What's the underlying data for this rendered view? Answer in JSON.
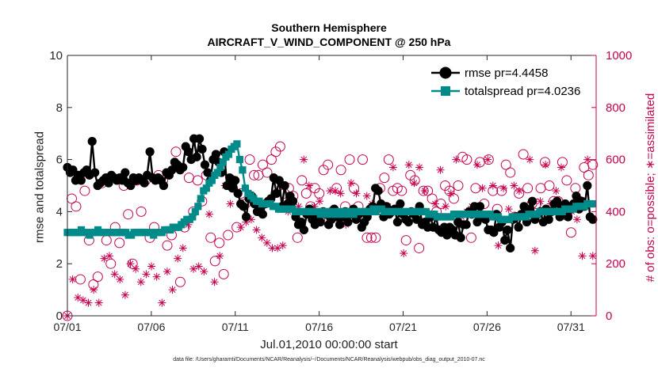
{
  "chart_data": {
    "type": "line",
    "title": "Southern Hemisphere",
    "subtitle": "AIRCRAFT_V_WIND_COMPONENT @ 250 hPa",
    "xlabel": "Jul.01,2010 00:00:00 start",
    "ylabel": "rmse and totalspread",
    "ylabel_right": "# of obs: o=possible; ∗=assimilated",
    "footnote": "data file: /Users/gharamti/Documents/NCAR/Reanalysis/~/Documents/NCAR/Reanalysis/webpub/obs_diag_output_2010-07.nc",
    "xlim": [
      0,
      31.5
    ],
    "ylim": [
      0,
      10
    ],
    "ylim_right": [
      0,
      1000
    ],
    "x_ticks": [
      0,
      5,
      10,
      15,
      20,
      25,
      30
    ],
    "x_tick_labels": [
      "07/01",
      "07/06",
      "07/11",
      "07/16",
      "07/21",
      "07/26",
      "07/31"
    ],
    "y_ticks": [
      0,
      2,
      4,
      6,
      8,
      10
    ],
    "y_tick_labels": [
      "0",
      "2",
      "4",
      "6",
      "8",
      "10"
    ],
    "y_right_ticks": [
      0,
      200,
      400,
      600,
      800,
      1000
    ],
    "y_right_tick_labels": [
      "0",
      "200",
      "400",
      "600",
      "800",
      "1000"
    ],
    "legend": [
      "rmse pr=4.4458",
      "totalspread pr=4.0236"
    ],
    "legend_location": "top-right",
    "colors": {
      "rmse": "#000000",
      "spread": "#008b8b",
      "counts": "#c80050",
      "axis": "#262626"
    },
    "series": [
      {
        "name": "rmse",
        "label": "rmse pr=4.4458",
        "axis": "left",
        "values": [
          5.7,
          5.5,
          5.6,
          5.2,
          5.4,
          5.2,
          5.5,
          5.6,
          5.4,
          6.7,
          5.5,
          5.0,
          5.1,
          5.2,
          5.3,
          5.1,
          5.4,
          5.3,
          5.2,
          5.3,
          5.2,
          5.5,
          5.1,
          5.0,
          5.3,
          5.2,
          5.3,
          5.2,
          5.1,
          5.4,
          6.3,
          5.3,
          5.2,
          5.3,
          5.2,
          5.0,
          5.5,
          5.4,
          5.6,
          5.9,
          5.8,
          5.6,
          5.7,
          6.5,
          6.3,
          6.0,
          6.8,
          6.1,
          6.8,
          6.4,
          5.8,
          5.5,
          5.2,
          6.0,
          6.2,
          5.9,
          5.5,
          6.3,
          5.0,
          5.3,
          4.9,
          5.2,
          4.7,
          4.3,
          4.2,
          3.8,
          4.5,
          4.6,
          4.3,
          4.0,
          4.1,
          3.9,
          4.3,
          4.4,
          4.5,
          5.3,
          4.7,
          5.2,
          4.2,
          5.0,
          4.3,
          4.6,
          4.4,
          3.8,
          3.5,
          3.6,
          3.3,
          3.9,
          4.1,
          3.7,
          3.5,
          3.8,
          3.6,
          4.0,
          3.9,
          3.5,
          3.7,
          4.1,
          3.8,
          3.5,
          3.8,
          4.0,
          3.6,
          3.9,
          4.1,
          3.7,
          3.9,
          3.4,
          3.6,
          3.8,
          4.1,
          4.2,
          4.9,
          4.8,
          4.3,
          3.8,
          4.2,
          3.9,
          4.0,
          4.1,
          3.6,
          4.3,
          3.9,
          3.7,
          3.6,
          4.0,
          3.9,
          3.7,
          4.2,
          3.5,
          3.6,
          3.4,
          3.8,
          3.4,
          3.8,
          3.3,
          3.2,
          3.4,
          3.1,
          3.4,
          3.3,
          3.1,
          3.6,
          3.0,
          3.5,
          3.5,
          4.0,
          3.9,
          4.2,
          3.6,
          4.2,
          3.8,
          3.7,
          3.3,
          3.3,
          3.2,
          3.9,
          3.4,
          3.6,
          2.9,
          3.3,
          2.6,
          3.7,
          3.8,
          3.4,
          3.9,
          4.2,
          3.6,
          4.1,
          4.4,
          3.7,
          3.9,
          4.0,
          3.6,
          4.1,
          3.7,
          4.0,
          4.3,
          4.4,
          3.8,
          4.2,
          4.3,
          3.8,
          4.1,
          4.3,
          4.6,
          4.1,
          4.4,
          4.2,
          5.0,
          3.8,
          3.7
        ]
      },
      {
        "name": "totalspread",
        "label": "totalspread pr=4.0236",
        "axis": "left",
        "values": [
          3.2,
          3.2,
          3.2,
          3.2,
          3.2,
          3.3,
          3.2,
          3.2,
          3.1,
          3.2,
          3.2,
          3.3,
          3.2,
          3.2,
          3.2,
          3.2,
          3.2,
          3.2,
          3.2,
          3.2,
          3.2,
          3.2,
          3.1,
          3.1,
          3.2,
          3.2,
          3.2,
          3.2,
          3.2,
          3.2,
          3.2,
          3.1,
          3.2,
          3.2,
          3.2,
          3.3,
          3.3,
          3.3,
          3.4,
          3.4,
          3.4,
          3.5,
          3.6,
          3.7,
          3.7,
          3.8,
          4.0,
          4.2,
          4.5,
          4.8,
          4.9,
          5.1,
          5.2,
          5.4,
          5.5,
          5.7,
          5.9,
          6.1,
          6.2,
          6.4,
          6.5,
          6.6,
          6.0,
          5.6,
          4.9,
          4.7,
          4.6,
          4.5,
          4.4,
          4.4,
          4.3,
          4.3,
          4.3,
          4.3,
          4.2,
          4.2,
          4.1,
          4.1,
          4.1,
          4.1,
          4.1,
          4.1,
          4.0,
          4.0,
          4.0,
          4.0,
          4.0,
          4.0,
          4.0,
          4.0,
          4.0,
          3.9,
          4.0,
          3.9,
          4.0,
          3.9,
          4.0,
          3.9,
          4.0,
          3.9,
          4.0,
          3.9,
          4.0,
          3.9,
          4.0,
          4.0,
          4.0,
          4.0,
          4.0,
          4.0,
          4.1,
          4.0,
          4.1,
          4.1,
          4.0,
          4.0,
          4.0,
          4.0,
          4.0,
          4.0,
          4.0,
          4.0,
          4.0,
          4.0,
          4.0,
          4.0,
          4.0,
          4.0,
          4.0,
          4.0,
          3.9,
          3.9,
          3.9,
          3.8,
          3.8,
          3.8,
          3.8,
          3.8,
          3.8,
          3.9,
          3.9,
          3.9,
          3.9,
          3.9,
          3.9,
          3.9,
          3.9,
          3.9,
          3.9,
          3.9,
          3.9,
          3.9,
          3.9,
          3.8,
          3.8,
          3.8,
          3.7,
          3.7,
          3.7,
          3.7,
          3.8,
          3.8,
          3.8,
          3.8,
          3.8,
          3.8,
          3.9,
          3.9,
          3.9,
          3.9,
          4.0,
          4.0,
          4.0,
          4.0,
          4.0,
          4.0,
          4.0,
          4.0,
          4.0,
          4.1,
          4.1,
          4.1,
          4.1,
          4.2,
          4.2,
          4.2,
          4.2,
          4.3,
          4.3,
          4.3
        ]
      },
      {
        "name": "obs_possible",
        "label": "possible",
        "axis": "right",
        "marker": "o",
        "values": [
          0,
          450,
          420,
          140,
          480,
          290,
          120,
          150,
          510,
          290,
          200,
          340,
          280,
          500,
          390,
          200,
          520,
          400,
          520,
          300,
          340,
          540,
          520,
          270,
          310,
          630,
          130,
          340,
          530,
          400,
          520,
          440,
          540,
          300,
          210,
          280,
          160,
          310,
          520,
          340,
          470,
          430,
          600,
          540,
          540,
          580,
          550,
          600,
          630,
          650,
          470,
          490,
          460,
          300,
          520,
          470,
          420,
          490,
          470,
          560,
          580,
          400,
          490,
          560,
          420,
          600,
          490,
          420,
          600,
          300,
          300,
          300,
          490,
          530,
          600,
          480,
          490,
          480,
          290,
          540,
          520,
          260,
          480,
          480,
          450,
          400,
          430,
          500,
          480,
          450,
          500,
          610,
          600,
          300,
          490,
          590,
          430,
          600,
          480,
          410,
          480,
          580,
          550,
          380,
          470,
          620,
          490,
          430,
          430,
          490,
          590,
          500,
          440,
          440,
          590,
          520,
          320,
          490,
          440,
          570,
          540,
          580
        ]
      },
      {
        "name": "obs_assimilated",
        "label": "assimilated",
        "axis": "right",
        "marker": "*",
        "values": [
          0,
          140,
          70,
          60,
          50,
          100,
          50,
          220,
          230,
          160,
          140,
          80,
          200,
          180,
          130,
          160,
          190,
          150,
          50,
          170,
          100,
          220,
          260,
          350,
          180,
          190,
          170,
          390,
          130,
          230,
          500,
          430,
          520,
          340,
          360,
          370,
          330,
          300,
          280,
          260,
          260,
          270,
          400,
          440,
          420,
          600,
          500,
          420,
          440,
          380,
          480,
          480,
          470,
          350,
          510,
          470,
          340,
          460,
          430,
          420,
          380,
          420,
          570,
          410,
          240,
          580,
          510,
          570,
          480,
          380,
          430,
          560,
          420,
          470,
          600,
          380,
          400,
          420,
          580,
          490,
          600,
          500,
          270,
          490,
          410,
          500,
          480,
          400,
          600,
          250,
          440,
          580,
          430,
          480,
          570,
          380,
          400,
          370,
          230,
          600,
          230
        ]
      }
    ]
  }
}
